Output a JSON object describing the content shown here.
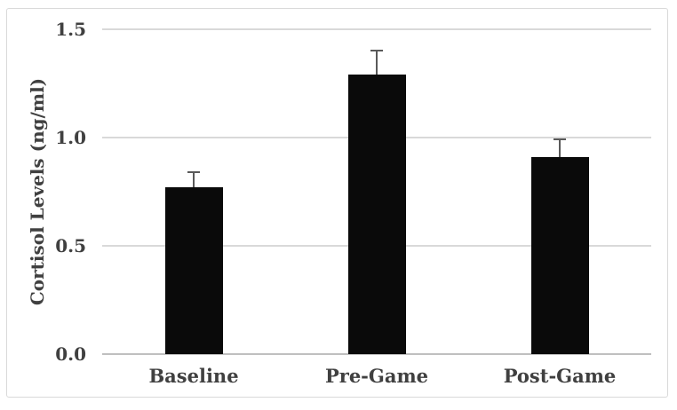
{
  "chart_data": {
    "type": "bar",
    "title": "",
    "xlabel": "",
    "ylabel": "Cortisol Levels (ng/ml)",
    "categories": [
      "Baseline",
      "Pre-Game",
      "Post-Game"
    ],
    "values": [
      0.77,
      1.29,
      0.91
    ],
    "error_plus": [
      0.07,
      0.11,
      0.08
    ],
    "ylim": [
      0,
      1.5
    ],
    "yticks": [
      "0.0",
      "0.5",
      "1.0",
      "1.5"
    ],
    "grid": true,
    "legend": "none",
    "bar_color": "#0a0a0a",
    "error_bar_color": "#595959",
    "gridline_color": "#d9d9d9",
    "axis_line_color": "#bfbfbf",
    "text_color": "#404040",
    "border_color": "#d9d9d9",
    "background_color": "#ffffff"
  }
}
